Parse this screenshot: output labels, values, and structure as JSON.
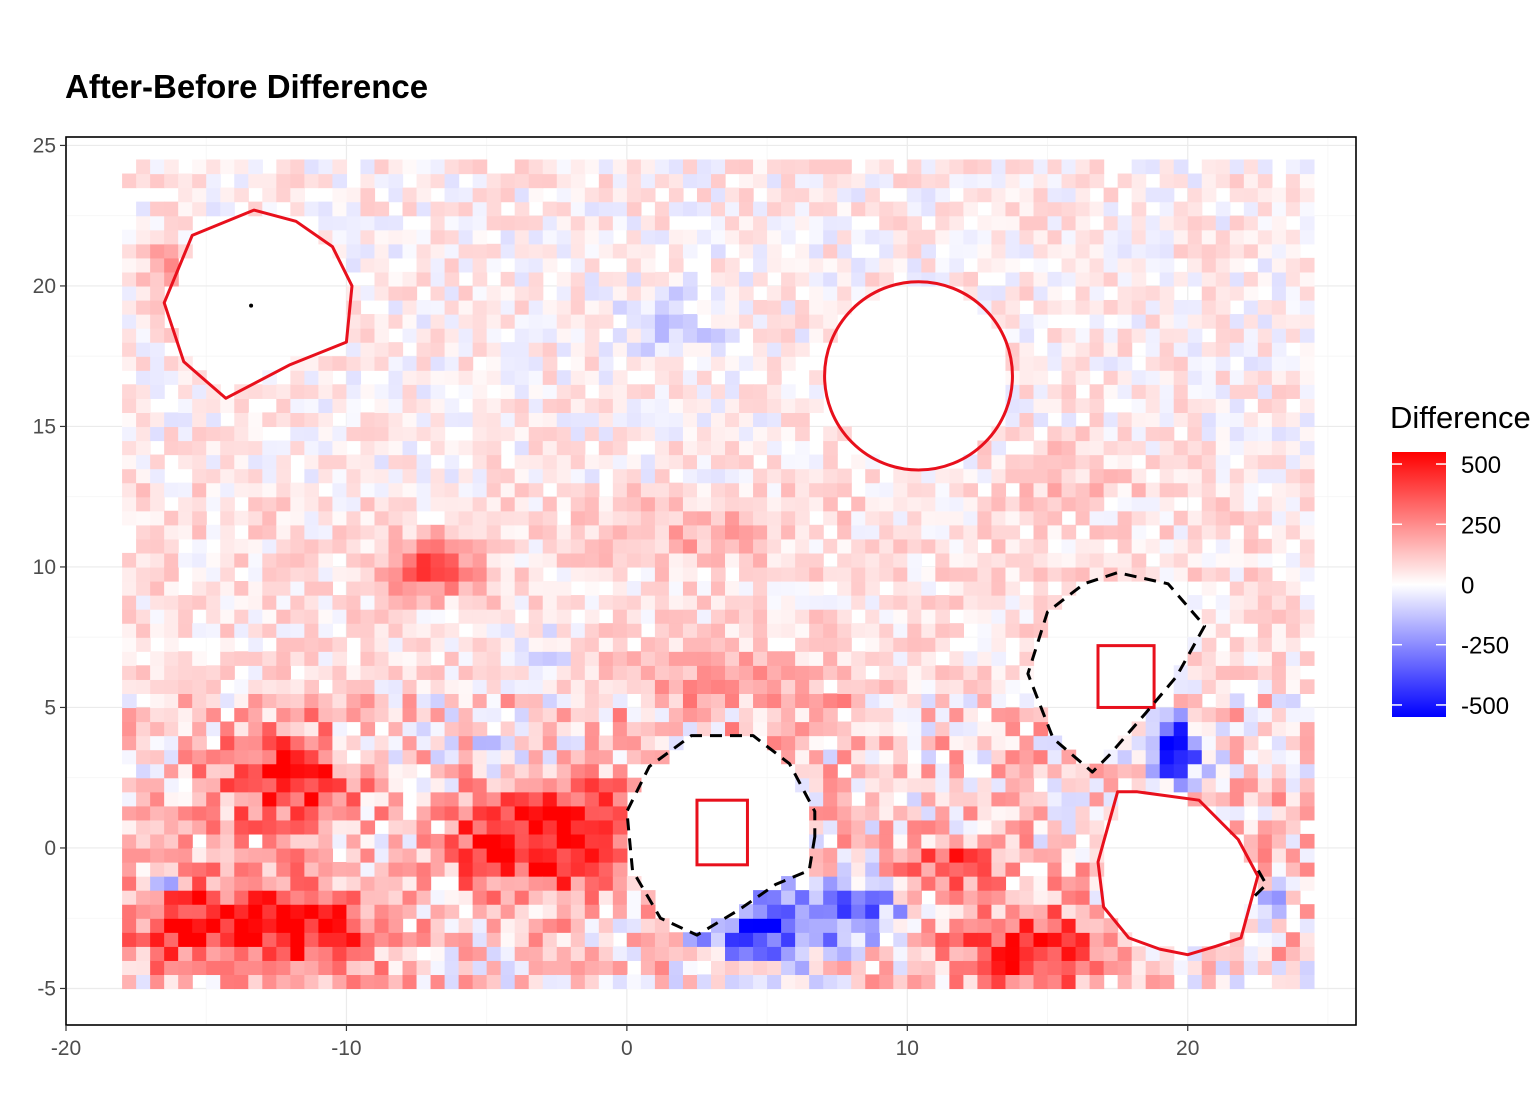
{
  "chart_data": {
    "type": "heatmap",
    "title": "After-Before Difference",
    "xlabel": "",
    "ylabel": "",
    "xlim": [
      -20,
      26
    ],
    "ylim": [
      -6.3,
      25.3
    ],
    "x_ticks": [
      -20,
      -10,
      0,
      10,
      20
    ],
    "y_ticks": [
      -5,
      0,
      5,
      10,
      15,
      20,
      25
    ],
    "grid": true,
    "cell_size": 0.5,
    "cell_x_range": [
      -18,
      24
    ],
    "cell_y_range": [
      -5,
      24
    ],
    "legend": {
      "title": "Difference",
      "position": "right",
      "labels": [
        "500",
        "250",
        "0",
        "-250",
        "-500"
      ],
      "values": [
        500,
        250,
        0,
        -250,
        -500
      ],
      "colors": {
        "high": "#ff0000",
        "mid": "#ffffff",
        "low": "#0000ff"
      },
      "limits": [
        -550,
        550
      ]
    },
    "regions": [
      {
        "kind": "red-circle",
        "cx": 10.4,
        "cy": 16.8,
        "r": 3.35
      },
      {
        "kind": "red-square",
        "x0": 2.5,
        "x1": 4.3,
        "y0": -0.6,
        "y1": 1.7
      },
      {
        "kind": "red-square",
        "x0": 16.8,
        "x1": 18.8,
        "y0": 5.0,
        "y1": 7.2
      },
      {
        "kind": "red-cut-circle",
        "points": [
          [
            -13.3,
            22.7
          ],
          [
            -11.8,
            22.3
          ],
          [
            -10.5,
            21.4
          ],
          [
            -9.8,
            20.0
          ],
          [
            -10.0,
            18.0
          ],
          [
            -12.0,
            17.2
          ],
          [
            -14.3,
            16.0
          ],
          [
            -15.8,
            17.3
          ],
          [
            -16.5,
            19.4
          ],
          [
            -15.5,
            21.8
          ]
        ]
      },
      {
        "kind": "red-cut-circle",
        "points": [
          [
            17.5,
            2.0
          ],
          [
            18.2,
            2.0
          ],
          [
            20.4,
            1.7
          ],
          [
            21.8,
            0.3
          ],
          [
            22.5,
            -1.0
          ],
          [
            21.9,
            -3.2
          ],
          [
            21.0,
            -3.5
          ],
          [
            20.0,
            -3.8
          ],
          [
            19.0,
            -3.6
          ],
          [
            17.9,
            -3.2
          ],
          [
            17.0,
            -2.1
          ],
          [
            16.8,
            -0.5
          ]
        ]
      },
      {
        "kind": "black-dashed-circle",
        "points": [
          [
            6.7,
            0.4
          ],
          [
            6.5,
            -0.8
          ],
          [
            5.3,
            -1.3
          ],
          [
            4.0,
            -2.2
          ],
          [
            2.5,
            -3.1
          ],
          [
            1.2,
            -2.5
          ],
          [
            0.2,
            -0.8
          ],
          [
            0.0,
            1.3
          ],
          [
            0.8,
            2.9
          ],
          [
            2.3,
            4.0
          ],
          [
            4.5,
            4.0
          ],
          [
            5.8,
            3.0
          ],
          [
            6.7,
            1.3
          ]
        ]
      },
      {
        "kind": "black-dashed-circle",
        "points": [
          [
            20.6,
            7.9
          ],
          [
            19.6,
            6.1
          ],
          [
            18.5,
            4.8
          ],
          [
            17.2,
            3.3
          ],
          [
            16.6,
            2.7
          ],
          [
            15.2,
            3.9
          ],
          [
            14.3,
            6.2
          ],
          [
            15.0,
            8.4
          ],
          [
            16.3,
            9.4
          ],
          [
            17.5,
            9.8
          ],
          [
            19.3,
            9.4
          ],
          [
            20.6,
            7.9
          ]
        ]
      },
      {
        "kind": "black-dashed-line",
        "points": [
          [
            22.4,
            -1.7
          ],
          [
            22.8,
            -1.3
          ],
          [
            22.4,
            -0.6
          ]
        ]
      }
    ],
    "hotspots": [
      {
        "x": -12,
        "y": 2.5,
        "sx": 2.5,
        "sy": 1.8,
        "v": 420
      },
      {
        "x": -12,
        "y": -2.8,
        "sx": 3.0,
        "sy": 1.6,
        "v": 480
      },
      {
        "x": -16,
        "y": -2.5,
        "sx": 1.8,
        "sy": 1.5,
        "v": 350
      },
      {
        "x": -7,
        "y": 10.0,
        "sx": 1.8,
        "sy": 1.0,
        "v": 330
      },
      {
        "x": -2,
        "y": 0.5,
        "sx": 2.2,
        "sy": 2.0,
        "v": 520
      },
      {
        "x": -5,
        "y": 0.0,
        "sx": 1.5,
        "sy": 1.5,
        "v": 350
      },
      {
        "x": 5.0,
        "y": -2.8,
        "sx": 2.5,
        "sy": 1.3,
        "v": -560
      },
      {
        "x": 8.5,
        "y": -2.0,
        "sx": 1.5,
        "sy": 1.0,
        "v": -400
      },
      {
        "x": 14.5,
        "y": -3.6,
        "sx": 2.6,
        "sy": 1.4,
        "v": 450
      },
      {
        "x": 11.5,
        "y": -0.6,
        "sx": 1.8,
        "sy": 0.8,
        "v": 330
      },
      {
        "x": 19.5,
        "y": 3.5,
        "sx": 1.0,
        "sy": 1.3,
        "v": -600
      },
      {
        "x": 3.0,
        "y": 6.0,
        "sx": 4.0,
        "sy": 1.2,
        "v": 150
      },
      {
        "x": -3.0,
        "y": 7.0,
        "sx": 1.5,
        "sy": 1.0,
        "v": -110
      },
      {
        "x": 2.0,
        "y": 18.8,
        "sx": 2.0,
        "sy": 1.5,
        "v": -120
      },
      {
        "x": 2.5,
        "y": 11.2,
        "sx": 3.0,
        "sy": 1.0,
        "v": 130
      },
      {
        "x": 16.0,
        "y": 13.5,
        "sx": 2.5,
        "sy": 1.0,
        "v": 110
      },
      {
        "x": -9.0,
        "y": 4.0,
        "sx": 1.5,
        "sy": 1.2,
        "v": -120
      },
      {
        "x": -4.0,
        "y": 3.8,
        "sx": 1.5,
        "sy": 1.0,
        "v": -130
      },
      {
        "x": -16.5,
        "y": 20.5,
        "sx": 0.8,
        "sy": 1.5,
        "v": 160
      },
      {
        "x": 23.0,
        "y": -2.0,
        "sx": 0.5,
        "sy": 0.5,
        "v": -500
      },
      {
        "x": -16.5,
        "y": -1.2,
        "sx": 0.6,
        "sy": 0.4,
        "v": -500
      }
    ]
  }
}
